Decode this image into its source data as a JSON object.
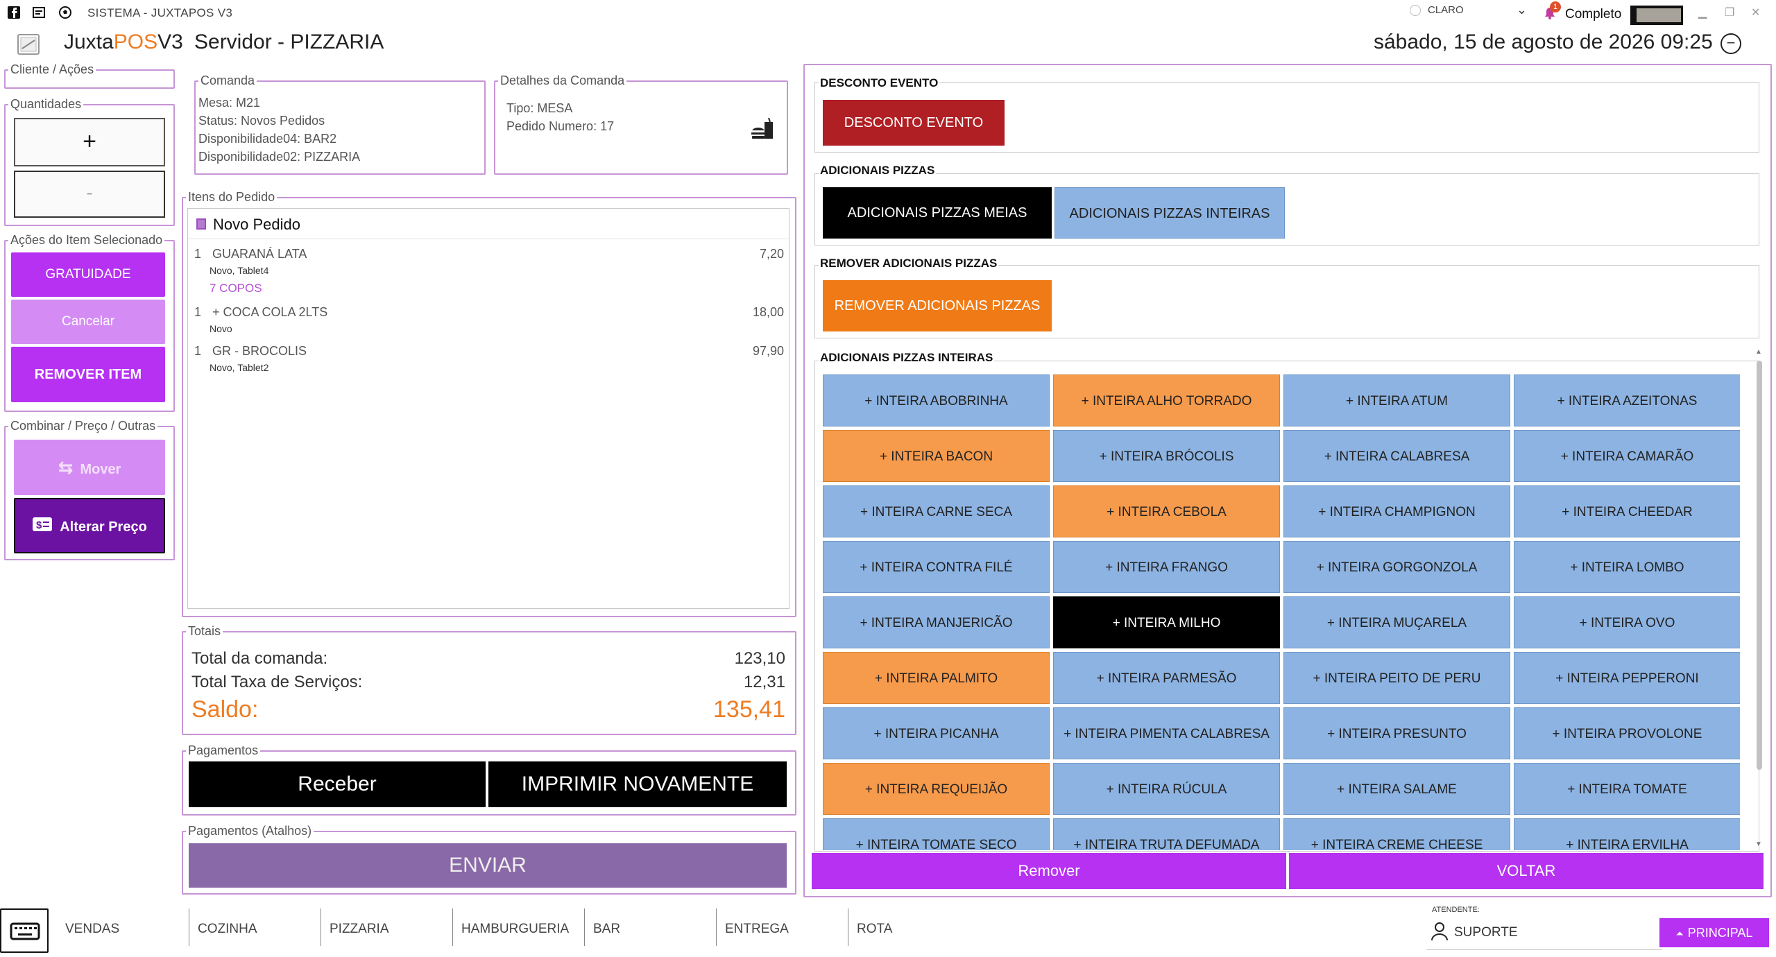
{
  "window": {
    "title": "SISTEMA - JUXTAPOS V3",
    "theme_label": "CLARO",
    "notification_count": "1",
    "mode_label": "Completo"
  },
  "header": {
    "app_name_prefix": "Juxta",
    "app_name_pos": "POS",
    "app_name_suffix": "V3",
    "server": "Servidor - PIZZARIA",
    "datetime": "sábado, 15 de agosto de 2026 09:25"
  },
  "left": {
    "cliente_label": "Cliente / Ações",
    "quantidades_label": "Quantidades",
    "plus": "+",
    "minus": "-",
    "acoes_label": "Ações do Item Selecionado",
    "gratuidade": "GRATUIDADE",
    "cancelar": "Cancelar",
    "remover_item": "REMOVER ITEM",
    "combinar_label": "Combinar / Preço / Outras",
    "mover": "Mover",
    "alterar_preco": "Alterar Preço"
  },
  "comanda": {
    "label": "Comanda",
    "lines": [
      "Mesa: M21",
      "Status: Novos Pedidos",
      "Disponibilidade04: BAR2",
      "Disponibilidade02: PIZZARIA"
    ]
  },
  "detalhes": {
    "label": "Detalhes da Comanda",
    "tipo": "Tipo: MESA",
    "pedido": "Pedido Numero: 17"
  },
  "itens": {
    "label": "Itens do Pedido",
    "header": "Novo Pedido",
    "rows": [
      {
        "qty": "1",
        "name": "GUARANÁ LATA",
        "price": "7,20",
        "sub": "Novo, Tablet4",
        "obs": "7 COPOS"
      },
      {
        "qty": "1",
        "name": "+ COCA COLA 2LTS",
        "price": "18,00",
        "sub": "Novo",
        "obs": ""
      },
      {
        "qty": "1",
        "name": "GR -  BROCOLIS",
        "price": "97,90",
        "sub": "Novo, Tablet2",
        "obs": ""
      }
    ]
  },
  "totais": {
    "label": "Totais",
    "comanda_label": "Total da comanda:",
    "comanda_value": "123,10",
    "taxa_label": "Total Taxa de Serviços:",
    "taxa_value": "12,31",
    "saldo_label": "Saldo:",
    "saldo_value": "135,41"
  },
  "pagamentos": {
    "label": "Pagamentos",
    "receber": "Receber",
    "imprimir": "IMPRIMIR NOVAMENTE",
    "atalhos_label": "Pagamentos (Atalhos)",
    "enviar": "ENVIAR"
  },
  "right": {
    "desconto_section": "DESCONTO EVENTO",
    "desconto_btn": "DESCONTO EVENTO",
    "adicionais_section": "ADICIONAIS PIZZAS",
    "meias_btn": "ADICIONAIS PIZZAS MEIAS",
    "inteiras_btn": "ADICIONAIS PIZZAS INTEIRAS",
    "remover_section": "REMOVER ADICIONAIS PIZZAS",
    "remover_btn": "REMOVER ADICIONAIS PIZZAS",
    "grid_section": "ADICIONAIS PIZZAS INTEIRAS",
    "remover": "Remover",
    "voltar": "VOLTAR"
  },
  "colors": {
    "blue": "#8cb3e2",
    "orange": "#f69a4b",
    "black": "#000000",
    "purple": "#b631f2",
    "red": "#b01f24"
  },
  "tiles": [
    {
      "label": "+ INTEIRA ABOBRINHA",
      "color": "blue"
    },
    {
      "label": "+ INTEIRA ALHO TORRADO",
      "color": "orange"
    },
    {
      "label": "+ INTEIRA ATUM",
      "color": "blue"
    },
    {
      "label": "+ INTEIRA AZEITONAS",
      "color": "blue"
    },
    {
      "label": "+ INTEIRA BACON",
      "color": "orange"
    },
    {
      "label": "+ INTEIRA BRÓCOLIS",
      "color": "blue"
    },
    {
      "label": "+ INTEIRA CALABRESA",
      "color": "blue"
    },
    {
      "label": "+ INTEIRA CAMARÃO",
      "color": "blue"
    },
    {
      "label": "+ INTEIRA  CARNE SECA",
      "color": "blue"
    },
    {
      "label": "+ INTEIRA CEBOLA",
      "color": "orange"
    },
    {
      "label": "+ INTEIRA CHAMPIGNON",
      "color": "blue"
    },
    {
      "label": "+ INTEIRA CHEEDAR",
      "color": "blue"
    },
    {
      "label": "+ INTEIRA CONTRA FILÉ",
      "color": "blue"
    },
    {
      "label": "+ INTEIRA FRANGO",
      "color": "blue"
    },
    {
      "label": "+ INTEIRA GORGONZOLA",
      "color": "blue"
    },
    {
      "label": "+ INTEIRA LOMBO",
      "color": "blue"
    },
    {
      "label": "+ INTEIRA MANJERICÃO",
      "color": "blue"
    },
    {
      "label": "+ INTEIRA MILHO",
      "color": "black"
    },
    {
      "label": "+ INTEIRA MUÇARELA",
      "color": "blue"
    },
    {
      "label": "+ INTEIRA OVO",
      "color": "blue"
    },
    {
      "label": "+ INTEIRA PALMITO",
      "color": "orange"
    },
    {
      "label": "+ INTEIRA PARMESÃO",
      "color": "blue"
    },
    {
      "label": "+ INTEIRA PEITO DE PERU",
      "color": "blue"
    },
    {
      "label": "+ INTEIRA PEPPERONI",
      "color": "blue"
    },
    {
      "label": "+ INTEIRA PICANHA",
      "color": "blue"
    },
    {
      "label": "+ INTEIRA PIMENTA CALABRESA",
      "color": "blue"
    },
    {
      "label": "+ INTEIRA PRESUNTO",
      "color": "blue"
    },
    {
      "label": "+ INTEIRA PROVOLONE",
      "color": "blue"
    },
    {
      "label": "+ INTEIRA REQUEIJÃO",
      "color": "orange"
    },
    {
      "label": "+ INTEIRA RÚCULA",
      "color": "blue"
    },
    {
      "label": "+ INTEIRA SALAME",
      "color": "blue"
    },
    {
      "label": "+ INTEIRA TOMATE",
      "color": "blue"
    },
    {
      "label": "+ INTEIRA TOMATE SECO",
      "color": "blue"
    },
    {
      "label": "+ INTEIRA TRUTA DEFUMADA",
      "color": "blue"
    },
    {
      "label": "+ INTEIRA CREME CHEESE",
      "color": "blue"
    },
    {
      "label": "+ INTEIRA ERVILHA",
      "color": "blue"
    }
  ],
  "bottom": {
    "tabs": [
      "VENDAS",
      "COZINHA",
      "PIZZARIA",
      "HAMBURGUERIA",
      "BAR",
      "ENTREGA",
      "ROTA"
    ],
    "atendente_label": "ATENDENTE:",
    "atendente_name": "SUPORTE",
    "principal": "PRINCIPAL"
  }
}
